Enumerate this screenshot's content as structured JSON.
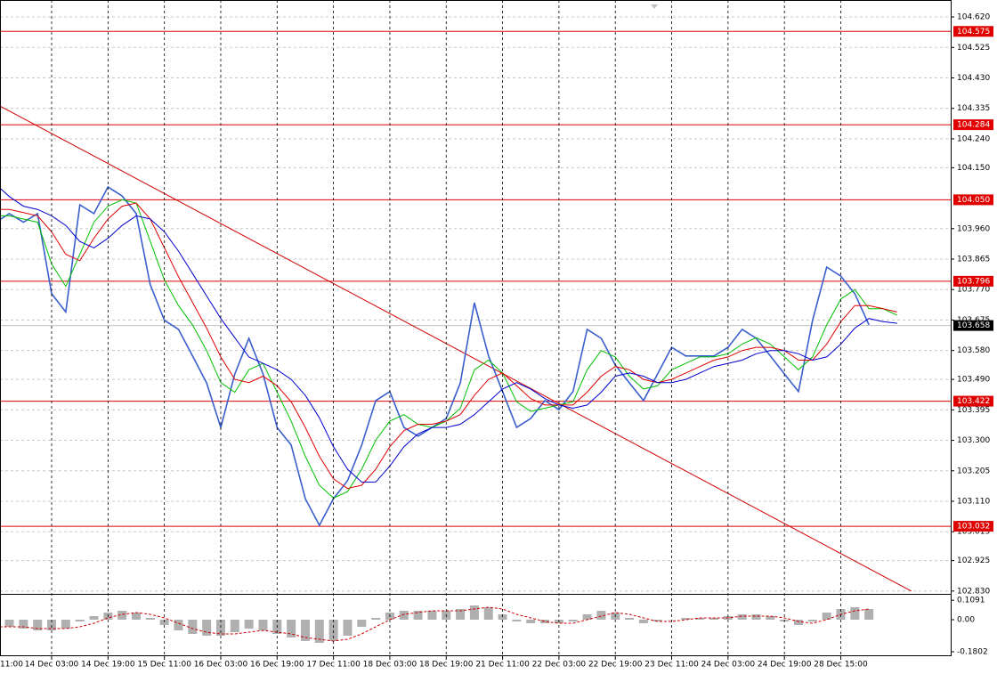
{
  "chart_data": [
    {
      "type": "line",
      "categories": [
        "11:00",
        null,
        null,
        null,
        "14 Dec 03:00",
        null,
        null,
        null,
        "14 Dec 19:00",
        null,
        null,
        null,
        "15 Dec 11:00",
        null,
        null,
        null,
        "16 Dec 03:00",
        null,
        null,
        null,
        "16 Dec 19:00",
        null,
        null,
        null,
        "17 Dec 11:00",
        null,
        null,
        null,
        "18 Dec 03:00",
        null,
        null,
        null,
        "18 Dec 19:00",
        null,
        null,
        null,
        "21 Dec 11:00",
        null,
        null,
        null,
        "22 Dec 03:00",
        null,
        null,
        null,
        "22 Dec 19:00",
        null,
        null,
        null,
        "23 Dec 11:00",
        null,
        null,
        null,
        "24 Dec 03:00",
        null,
        null,
        null,
        "24 Dec 19:00",
        null,
        null,
        null,
        "28 Dec 15:00",
        null,
        null,
        null,
        null,
        null,
        null,
        null
      ],
      "series": [
        {
          "color": "#3a5fcd",
          "values": [
            103.979,
            104.007,
            103.98,
            104.007,
            103.757,
            103.7,
            104.034,
            104.007,
            104.09,
            104.062,
            104.007,
            103.785,
            103.674,
            103.646,
            103.563,
            103.479,
            103.34,
            103.507,
            103.618,
            103.507,
            103.34,
            103.285,
            103.118,
            103.035,
            103.118,
            103.174,
            103.285,
            103.424,
            103.452,
            103.34,
            103.313,
            103.34,
            103.368,
            103.479,
            103.729,
            103.563,
            103.452,
            103.34,
            103.368,
            103.424,
            103.396,
            103.452,
            103.646,
            103.618,
            103.535,
            103.479,
            103.424,
            103.507,
            103.59,
            103.563,
            103.563,
            103.563,
            103.59,
            103.646,
            103.618,
            103.563,
            103.507,
            103.452,
            103.674,
            103.84,
            103.812,
            103.757,
            103.66,
            null,
            null,
            null,
            null,
            null
          ]
        },
        {
          "color": "#00c000",
          "values": [
            104.0,
            104.0,
            103.99,
            103.98,
            103.85,
            103.78,
            103.88,
            103.98,
            104.03,
            104.05,
            104.04,
            103.92,
            103.8,
            103.72,
            103.66,
            103.58,
            103.48,
            103.45,
            103.52,
            103.54,
            103.45,
            103.36,
            103.25,
            103.16,
            103.12,
            103.14,
            103.21,
            103.3,
            103.36,
            103.38,
            103.35,
            103.34,
            103.36,
            103.4,
            103.52,
            103.55,
            103.51,
            103.42,
            103.39,
            103.4,
            103.41,
            103.42,
            103.52,
            103.58,
            103.56,
            103.5,
            103.46,
            103.47,
            103.52,
            103.54,
            103.56,
            103.56,
            103.57,
            103.6,
            103.62,
            103.6,
            103.56,
            103.52,
            103.56,
            103.66,
            103.74,
            103.77,
            103.71,
            103.71,
            103.69,
            null,
            null,
            null
          ]
        },
        {
          "color": "#e00000",
          "values": [
            104.02,
            104.02,
            104.01,
            104.0,
            103.95,
            103.88,
            103.86,
            103.93,
            103.99,
            104.03,
            104.04,
            103.99,
            103.9,
            103.81,
            103.73,
            103.65,
            103.56,
            103.49,
            103.48,
            103.5,
            103.47,
            103.42,
            103.34,
            103.25,
            103.18,
            103.15,
            103.16,
            103.21,
            103.28,
            103.33,
            103.35,
            103.35,
            103.36,
            103.38,
            103.44,
            103.49,
            103.51,
            103.47,
            103.43,
            103.41,
            103.41,
            103.41,
            103.45,
            103.5,
            103.53,
            103.52,
            103.49,
            103.48,
            103.49,
            103.51,
            103.53,
            103.55,
            103.56,
            103.58,
            103.59,
            103.59,
            103.58,
            103.55,
            103.55,
            103.6,
            103.67,
            103.72,
            103.72,
            103.71,
            103.7,
            null,
            null,
            null
          ]
        },
        {
          "color": "#0000d0",
          "values": [
            104.1,
            104.06,
            104.03,
            104.02,
            104.0,
            103.97,
            103.92,
            103.9,
            103.93,
            103.97,
            104.0,
            103.99,
            103.95,
            103.89,
            103.82,
            103.75,
            103.68,
            103.62,
            103.56,
            103.54,
            103.52,
            103.49,
            103.44,
            103.37,
            103.28,
            103.21,
            103.17,
            103.17,
            103.22,
            103.28,
            103.32,
            103.34,
            103.34,
            103.35,
            103.38,
            103.42,
            103.46,
            103.48,
            103.46,
            103.43,
            103.41,
            103.4,
            103.41,
            103.45,
            103.5,
            103.51,
            103.5,
            103.48,
            103.48,
            103.49,
            103.51,
            103.53,
            103.54,
            103.55,
            103.57,
            103.58,
            103.58,
            103.57,
            103.55,
            103.56,
            103.6,
            103.65,
            103.68,
            103.67,
            103.665,
            null,
            null,
            null
          ]
        }
      ],
      "ylim": [
        102.824,
        104.659
      ],
      "yticks": [
        {
          "value": 104.62,
          "label": "104.620"
        },
        104.525,
        {
          "value": 104.43,
          "label": "104.430"
        },
        104.335,
        {
          "value": 104.24,
          "label": "104.240"
        },
        {
          "value": 104.15,
          "label": "104.150"
        },
        {
          "value": 103.96,
          "label": "103.960"
        },
        103.865,
        {
          "value": 103.77,
          "label": "103.770"
        },
        103.675,
        {
          "value": 103.58,
          "label": "103.580"
        },
        {
          "value": 103.49,
          "label": "103.490"
        },
        103.395,
        {
          "value": 103.3,
          "label": "103.300"
        },
        103.205,
        {
          "value": 103.11,
          "label": "103.110"
        },
        103.015,
        102.925,
        {
          "value": 102.83,
          "label": "102.830"
        }
      ],
      "grid": true,
      "levels": [
        104.575,
        104.284,
        {
          "value": 104.05,
          "label": "104.050"
        },
        103.796,
        103.422,
        103.032
      ],
      "level_color": "#e00000",
      "current_price": 103.658,
      "trend_line": {
        "x": [
          0,
          65
        ],
        "values": [
          104.35,
          102.83
        ],
        "color": "#d00000"
      }
    },
    {
      "type": "bar",
      "series": [
        {
          "type": "bar",
          "color": "#b0b0b0",
          "values": [
            -0.03,
            -0.04,
            -0.05,
            -0.06,
            -0.06,
            -0.05,
            -0.01,
            0.02,
            0.04,
            0.05,
            0.04,
            0.01,
            -0.03,
            -0.06,
            -0.08,
            -0.09,
            -0.09,
            -0.07,
            -0.05,
            -0.06,
            -0.08,
            -0.1,
            -0.12,
            -0.13,
            -0.12,
            -0.09,
            -0.04,
            0.01,
            0.04,
            0.05,
            0.05,
            0.05,
            0.05,
            0.06,
            0.08,
            0.07,
            0.03,
            -0.01,
            -0.02,
            -0.02,
            -0.02,
            -0.01,
            0.03,
            0.05,
            0.04,
            0.01,
            -0.02,
            -0.01,
            0.0,
            0.01,
            0.01,
            0.01,
            0.02,
            0.03,
            0.03,
            0.02,
            -0.01,
            -0.03,
            -0.01,
            0.04,
            0.06,
            0.07,
            0.06,
            null,
            null,
            null,
            null,
            null
          ]
        },
        {
          "type": "line",
          "color": "#d00000",
          "dashed": true,
          "values": [
            -0.04,
            -0.04,
            -0.04,
            -0.05,
            -0.05,
            -0.05,
            -0.04,
            -0.02,
            0.01,
            0.03,
            0.04,
            0.03,
            0.01,
            -0.02,
            -0.05,
            -0.07,
            -0.08,
            -0.08,
            -0.07,
            -0.06,
            -0.07,
            -0.08,
            -0.1,
            -0.11,
            -0.12,
            -0.11,
            -0.08,
            -0.04,
            0.0,
            0.03,
            0.04,
            0.05,
            0.05,
            0.05,
            0.06,
            0.07,
            0.06,
            0.03,
            0.01,
            -0.01,
            -0.02,
            -0.02,
            0.0,
            0.02,
            0.04,
            0.03,
            0.01,
            -0.01,
            -0.01,
            0.0,
            0.01,
            0.01,
            0.01,
            0.02,
            0.02,
            0.02,
            0.01,
            -0.01,
            -0.02,
            0.0,
            0.03,
            0.05,
            0.06,
            null,
            null,
            null,
            null,
            null
          ]
        }
      ],
      "ylim": [
        -0.2,
        0.14
      ],
      "yticks": [
        0.1091,
        {
          "value": 0,
          "label": "0.00"
        },
        -0.1802
      ]
    }
  ]
}
